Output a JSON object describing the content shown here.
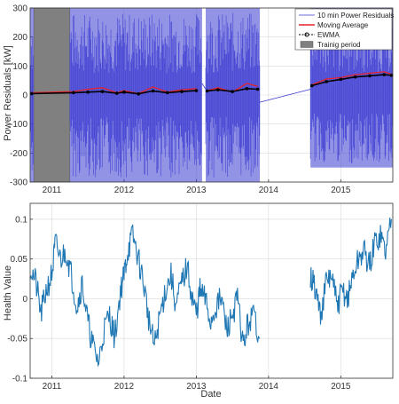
{
  "colors": {
    "residuals": "#3b3bd1",
    "moving_average": "#e8202a",
    "ewma": "#000000",
    "training": "#808080",
    "health": "#1f77b4",
    "grid": "#d9d9d9"
  },
  "chart_data": [
    {
      "type": "area",
      "ylabel": "Power Residuals [kW]",
      "xlabel": "",
      "xlim": [
        2010.7,
        2015.72
      ],
      "ylim": [
        -300,
        300
      ],
      "x_ticks": [
        2011,
        2012,
        2013,
        2014,
        2015
      ],
      "x_tick_labels": [
        "2011",
        "2012",
        "2013",
        "2014",
        "2015"
      ],
      "y_ticks": [
        -300,
        -200,
        -100,
        0,
        100,
        200,
        300
      ],
      "y_tick_labels": [
        "-300",
        "-200",
        "-100",
        "0",
        "100",
        "200",
        "300"
      ],
      "grid": true,
      "legend_position": "top-right",
      "legend": [
        {
          "label": "10 min Power Residuals",
          "icon": "thin-line"
        },
        {
          "label": "Moving Average",
          "icon": "red-line"
        },
        {
          "label": "EWMA",
          "icon": "dashed-circle-marker"
        },
        {
          "label": "Trainig period",
          "icon": "gray-box"
        }
      ],
      "training_period": [
        2010.75,
        2011.25
      ],
      "series": [
        {
          "name": "10 min Power Residuals",
          "segments": [
            {
              "start": 2010.7,
              "end": 2010.75,
              "low": -300,
              "high": 300
            },
            {
              "start": 2011.25,
              "end": 2013.08,
              "low": -300,
              "high": 300
            },
            {
              "start": 2013.13,
              "end": 2013.88,
              "low": -300,
              "high": 300
            },
            {
              "start": 2014.58,
              "end": 2015.72,
              "low": -250,
              "high": 300
            }
          ],
          "connector_lines": [
            {
              "x": [
                2013.08,
                2013.13
              ],
              "y": [
                40,
                20
              ]
            },
            {
              "x": [
                2013.88,
                2014.58
              ],
              "y": [
                -25,
                20
              ]
            }
          ]
        },
        {
          "name": "Moving Average",
          "x": [
            2010.72,
            2011.3,
            2011.5,
            2011.7,
            2011.9,
            2012.0,
            2012.2,
            2012.4,
            2012.6,
            2012.8,
            2013.0,
            2013.15,
            2013.3,
            2013.5,
            2013.7,
            2013.85,
            2014.6,
            2014.8,
            2015.0,
            2015.2,
            2015.4,
            2015.6,
            2015.7
          ],
          "y": [
            8,
            12,
            20,
            25,
            8,
            15,
            5,
            28,
            10,
            18,
            22,
            15,
            25,
            10,
            40,
            30,
            35,
            55,
            60,
            70,
            75,
            80,
            72
          ]
        },
        {
          "name": "EWMA",
          "x": [
            2010.72,
            2011.3,
            2011.5,
            2011.7,
            2011.9,
            2012.0,
            2012.2,
            2012.4,
            2012.6,
            2012.8,
            2013.0,
            2013.15,
            2013.3,
            2013.5,
            2013.7,
            2013.85,
            2014.6,
            2014.8,
            2015.0,
            2015.2,
            2015.4,
            2015.6,
            2015.7
          ],
          "y": [
            5,
            8,
            10,
            12,
            6,
            10,
            4,
            14,
            8,
            12,
            15,
            14,
            18,
            12,
            22,
            20,
            32,
            46,
            54,
            62,
            66,
            70,
            68
          ]
        }
      ]
    },
    {
      "type": "line",
      "ylabel": "Health Value",
      "xlabel": "Date",
      "xlim": [
        2010.7,
        2015.72
      ],
      "ylim": [
        -0.1,
        0.12
      ],
      "x_ticks": [
        2011,
        2012,
        2013,
        2014,
        2015
      ],
      "x_tick_labels": [
        "2011",
        "2012",
        "2013",
        "2014",
        "2015"
      ],
      "y_ticks": [
        -0.1,
        -0.05,
        0,
        0.05,
        0.1
      ],
      "y_tick_labels": [
        "-0.1",
        "-0.05",
        "0",
        "0.05",
        "0.1"
      ],
      "grid": true,
      "series": [
        {
          "segments": [
            {
              "x": [
                2010.7,
                2010.78,
                2010.85,
                2010.92,
                2011.0,
                2011.05,
                2011.12,
                2011.2,
                2011.27,
                2011.35,
                2011.42,
                2011.5,
                2011.57,
                2011.65,
                2011.72,
                2011.8,
                2011.87,
                2011.95,
                2012.0,
                2012.05,
                2012.12,
                2012.2,
                2012.27,
                2012.35,
                2012.42,
                2012.5,
                2012.57,
                2012.65,
                2012.72,
                2012.8,
                2012.87,
                2012.95,
                2013.0,
                2013.05,
                2013.12,
                2013.2,
                2013.27,
                2013.35,
                2013.42,
                2013.5,
                2013.57,
                2013.65,
                2013.72,
                2013.8,
                2013.88
              ],
              "y": [
                0.04,
                0.02,
                -0.02,
                0.01,
                0.03,
                0.07,
                0.05,
                0.06,
                0.03,
                -0.01,
                0.02,
                -0.03,
                -0.06,
                -0.08,
                -0.04,
                -0.02,
                -0.05,
                0.01,
                0.03,
                0.06,
                0.08,
                0.05,
                0.02,
                -0.03,
                -0.06,
                -0.02,
                0.01,
                0.03,
                -0.01,
                0.02,
                0.04,
                0.0,
                -0.02,
                0.01,
                0.0,
                -0.03,
                -0.01,
                0.0,
                -0.04,
                -0.02,
                0.0,
                -0.06,
                -0.03,
                -0.02,
                -0.05
              ]
            },
            {
              "x": [
                2014.58,
                2014.65,
                2014.72,
                2014.8,
                2014.87,
                2014.95,
                2015.02,
                2015.1,
                2015.17,
                2015.25,
                2015.32,
                2015.4,
                2015.47,
                2015.55,
                2015.62,
                2015.7
              ],
              "y": [
                0.03,
                0.01,
                -0.02,
                0.02,
                0.03,
                -0.01,
                0.01,
                0.0,
                0.03,
                0.05,
                0.06,
                0.04,
                0.07,
                0.08,
                0.06,
                0.1
              ]
            }
          ]
        }
      ]
    }
  ]
}
